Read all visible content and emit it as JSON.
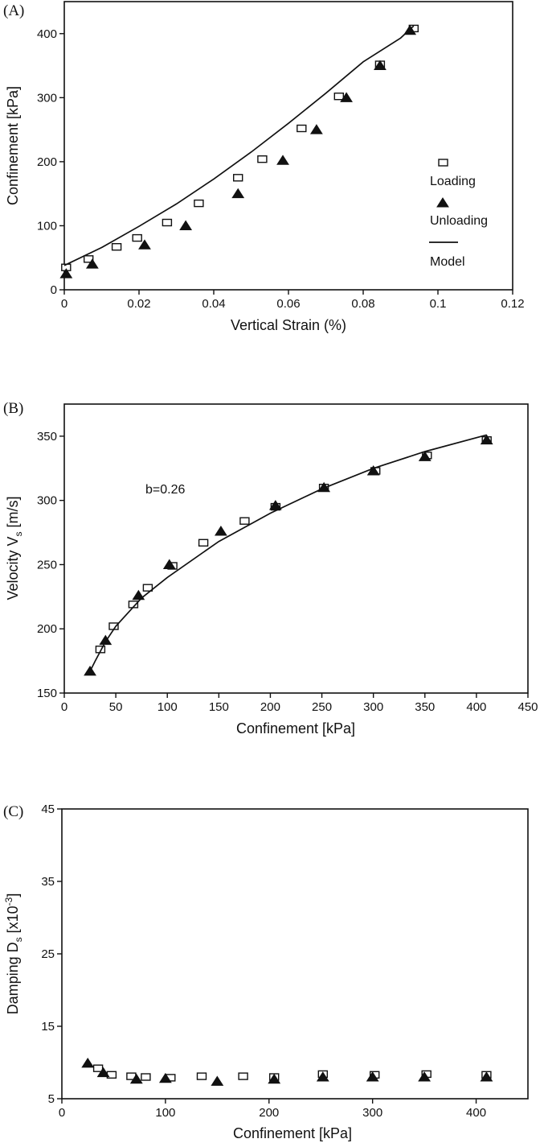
{
  "chart_data": [
    {
      "type": "scatter",
      "panel_label": "(A)",
      "xlabel": "Vertical Strain (%)",
      "ylabel": "Confinement [kPa]",
      "xlim": [
        0,
        0.12
      ],
      "ylim": [
        0,
        450
      ],
      "xticks": [
        0,
        0.02,
        0.04,
        0.06,
        0.08,
        0.1,
        0.12
      ],
      "yticks": [
        0,
        100,
        200,
        300,
        400
      ],
      "xtick_labels": [
        "0",
        "0.02",
        "0.04",
        "0.06",
        "0.08",
        "0.1",
        "0.12"
      ],
      "ytick_labels": [
        "0",
        "100",
        "200",
        "300",
        "400"
      ],
      "legend": {
        "position": "right",
        "entries": [
          "Loading",
          "Unloading",
          "Model"
        ]
      },
      "series": [
        {
          "name": "Loading",
          "marker": "square",
          "x": [
            0.0005,
            0.0065,
            0.014,
            0.0195,
            0.0275,
            0.036,
            0.0465,
            0.053,
            0.0635,
            0.0735,
            0.0845,
            0.0935
          ],
          "y": [
            35,
            48,
            67,
            81,
            105,
            135,
            175,
            204,
            252,
            302,
            352,
            408
          ]
        },
        {
          "name": "Unloading",
          "marker": "triangle",
          "x": [
            0.0005,
            0.0075,
            0.0215,
            0.0325,
            0.0465,
            0.0585,
            0.0675,
            0.0755,
            0.0845,
            0.0925
          ],
          "y": [
            25,
            40,
            70,
            100,
            150,
            202,
            250,
            300,
            350,
            405
          ]
        },
        {
          "name": "Model",
          "marker": "line",
          "x": [
            0,
            0.01,
            0.02,
            0.03,
            0.04,
            0.05,
            0.06,
            0.07,
            0.08,
            0.09,
            0.0935
          ],
          "y": [
            38,
            66,
            99,
            134,
            173,
            215,
            260,
            307,
            356,
            393,
            412
          ]
        }
      ]
    },
    {
      "type": "scatter",
      "panel_label": "(B)",
      "xlabel": "Confinement [kPa]",
      "ylabel": "Velocity V",
      "ylabel_subscript": "s",
      "ylabel_unit": " [m/s]",
      "annotation": "b=0.26",
      "xlim": [
        0,
        450
      ],
      "ylim": [
        150,
        375
      ],
      "xticks": [
        0,
        50,
        100,
        150,
        200,
        250,
        300,
        350,
        400,
        450
      ],
      "yticks": [
        150,
        200,
        250,
        300,
        350
      ],
      "xtick_labels": [
        "0",
        "50",
        "100",
        "150",
        "200",
        "250",
        "300",
        "350",
        "400",
        "450"
      ],
      "ytick_labels": [
        "150",
        "200",
        "250",
        "300",
        "350"
      ],
      "series": [
        {
          "name": "Loading",
          "marker": "square",
          "x": [
            35,
            48,
            67,
            81,
            105,
            135,
            175,
            205,
            252,
            302,
            352,
            410
          ],
          "y": [
            184,
            202,
            219,
            232,
            249,
            267,
            284,
            295,
            310,
            323,
            335,
            347
          ]
        },
        {
          "name": "Unloading",
          "marker": "triangle",
          "x": [
            25,
            40,
            72,
            102,
            152,
            205,
            252,
            300,
            350,
            410
          ],
          "y": [
            167,
            191,
            226,
            250,
            276,
            296,
            310,
            323,
            334,
            347
          ]
        },
        {
          "name": "Model",
          "marker": "line",
          "x": [
            25,
            30,
            40,
            50,
            75,
            100,
            150,
            200,
            250,
            300,
            350,
            410
          ],
          "y": [
            167,
            175,
            190,
            202,
            224,
            240,
            268,
            290,
            309,
            325,
            338,
            351
          ]
        }
      ]
    },
    {
      "type": "scatter",
      "panel_label": "(C)",
      "xlabel": "Confinement [kPa]",
      "ylabel": "Damping D",
      "ylabel_subscript": "s",
      "ylabel_unit": " [x10",
      "ylabel_superscript": "-3",
      "ylabel_end": "]",
      "xlim": [
        0,
        450
      ],
      "ylim": [
        5,
        45
      ],
      "xticks": [
        0,
        100,
        200,
        300,
        400
      ],
      "yticks": [
        5,
        15,
        25,
        35,
        45
      ],
      "xtick_labels": [
        "0",
        "100",
        "200",
        "300",
        "400"
      ],
      "ytick_labels": [
        "5",
        "15",
        "25",
        "35",
        "45"
      ],
      "series": [
        {
          "name": "Loading",
          "marker": "square",
          "x": [
            35,
            48,
            67,
            81,
            105,
            135,
            175,
            205,
            252,
            302,
            352,
            410
          ],
          "y": [
            9.2,
            8.3,
            8.1,
            8.0,
            7.9,
            8.1,
            8.1,
            8.0,
            8.4,
            8.3,
            8.4,
            8.3
          ]
        },
        {
          "name": "Unloading",
          "marker": "triangle",
          "x": [
            25,
            40,
            72,
            100,
            150,
            205,
            252,
            300,
            350,
            410
          ],
          "y": [
            9.9,
            8.6,
            7.7,
            7.8,
            7.4,
            7.7,
            8.0,
            8.0,
            8.0,
            8.0
          ]
        }
      ]
    }
  ]
}
